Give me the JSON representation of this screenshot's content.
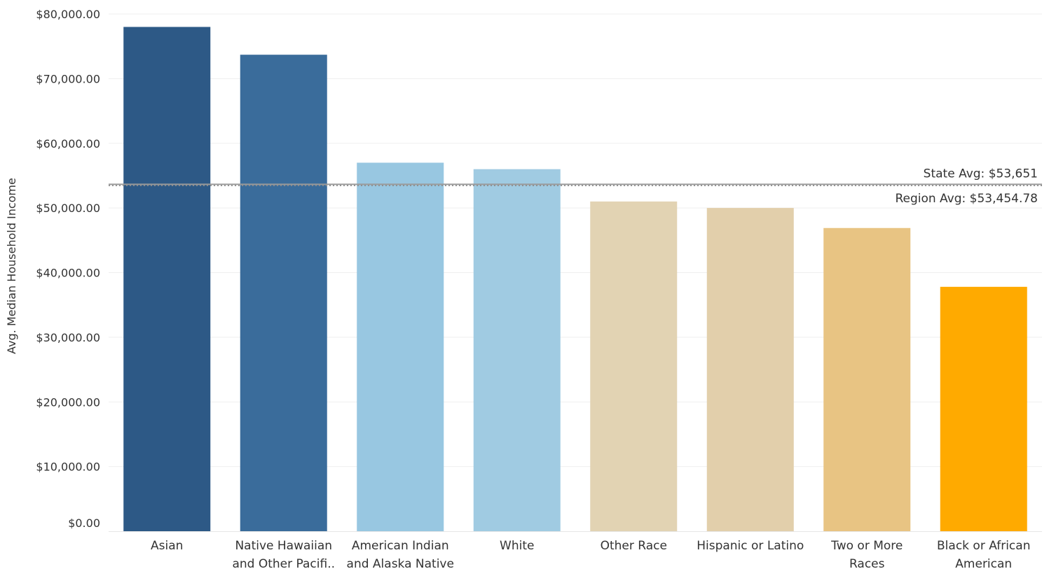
{
  "chart_data": {
    "type": "bar",
    "title": "",
    "xlabel": "",
    "ylabel": "Avg. Median Household Income",
    "ylim": [
      0,
      80000
    ],
    "y_ticks": [
      "$0.00",
      "$10,000.00",
      "$20,000.00",
      "$30,000.00",
      "$40,000.00",
      "$50,000.00",
      "$60,000.00",
      "$70,000.00",
      "$80,000.00"
    ],
    "y_tick_values": [
      0,
      10000,
      20000,
      30000,
      40000,
      50000,
      60000,
      70000,
      80000
    ],
    "grid": true,
    "categories": [
      "Asian",
      "Native Hawaiian and Other Pacifi..",
      "American Indian and Alaska Native",
      "White",
      "Other Race",
      "Hispanic or Latino",
      "Two or More Races",
      "Black or African American"
    ],
    "category_lines": [
      [
        "Asian"
      ],
      [
        "Native Hawaiian",
        "and Other Pacifi.."
      ],
      [
        "American Indian",
        "and Alaska Native"
      ],
      [
        "White"
      ],
      [
        "Other Race"
      ],
      [
        "Hispanic or Latino"
      ],
      [
        "Two or More",
        "Races"
      ],
      [
        "Black or African",
        "American"
      ]
    ],
    "values": [
      78000,
      73700,
      57000,
      56000,
      51000,
      50000,
      46900,
      37800
    ],
    "colors": [
      "#2d5986",
      "#3a6c9b",
      "#98c7e1",
      "#a0cbe2",
      "#e2d3b3",
      "#e2cfab",
      "#e8c483",
      "#ffaa00"
    ],
    "reference_lines": [
      {
        "label": "State Avg: $53,651",
        "value": 53651,
        "style": "solid",
        "label_position": "above"
      },
      {
        "label": "Region Avg: $53,454.78",
        "value": 53454.78,
        "style": "dotted",
        "label_position": "below"
      }
    ]
  }
}
